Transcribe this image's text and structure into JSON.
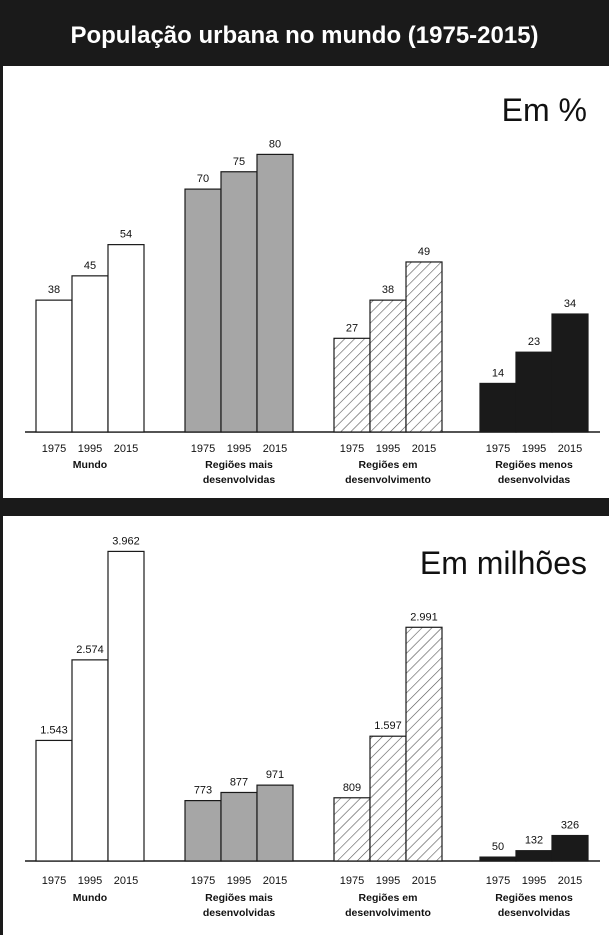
{
  "title": "População urbana no mundo (1975-2015)",
  "colors": {
    "dark": "#1a1a1a",
    "grey": "#a6a6a6",
    "white": "#ffffff",
    "hatch": "#555555"
  },
  "chart_data": [
    {
      "type": "bar",
      "title": "Em %",
      "categories": [
        "1975",
        "1995",
        "2015"
      ],
      "groups": [
        {
          "label": "Mundo",
          "values_label": [
            "38",
            "45",
            "54"
          ],
          "values": [
            38,
            45,
            54
          ],
          "style": "white"
        },
        {
          "label": "Regiões mais desenvolvidas",
          "values_label": [
            "70",
            "75",
            "80"
          ],
          "values": [
            70,
            75,
            80
          ],
          "style": "grey"
        },
        {
          "label": "Regiões em desenvolvimento",
          "values_label": [
            "27",
            "38",
            "49"
          ],
          "values": [
            27,
            38,
            49
          ],
          "style": "hatch"
        },
        {
          "label": "Regiões menos desenvolvidas",
          "values_label": [
            "14",
            "23",
            "34"
          ],
          "values": [
            14,
            23,
            34
          ],
          "style": "black"
        }
      ],
      "ylim": [
        0,
        100
      ]
    },
    {
      "type": "bar",
      "title": "Em milhões",
      "categories": [
        "1975",
        "1995",
        "2015"
      ],
      "groups": [
        {
          "label": "Mundo",
          "values_label": [
            "1.543",
            "2.574",
            "3.962"
          ],
          "values": [
            1543,
            2574,
            3962
          ],
          "style": "white"
        },
        {
          "label": "Regiões mais desenvolvidas",
          "values_label": [
            "773",
            "877",
            "971"
          ],
          "values": [
            773,
            877,
            971
          ],
          "style": "grey"
        },
        {
          "label": "Regiões em desenvolvimento",
          "values_label": [
            "809",
            "1.597",
            "2.991"
          ],
          "values": [
            809,
            1597,
            2991
          ],
          "style": "hatch"
        },
        {
          "label": "Regiões menos desenvolvidas",
          "values_label": [
            "50",
            "132",
            "326"
          ],
          "values": [
            50,
            132,
            326
          ],
          "style": "black"
        }
      ],
      "ylim": [
        0,
        4300
      ]
    }
  ]
}
